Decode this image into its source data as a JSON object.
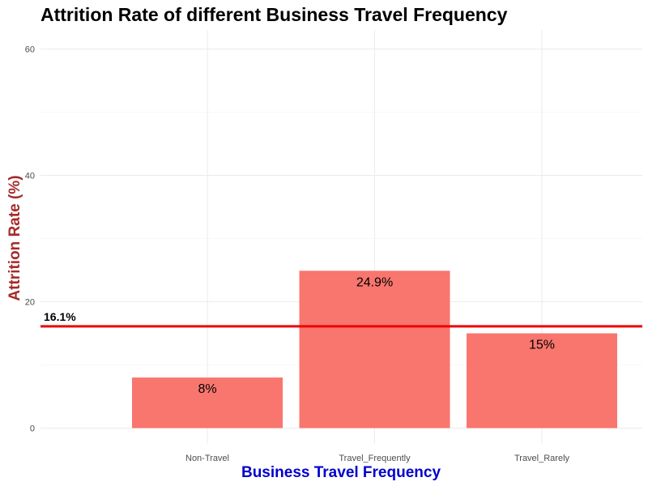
{
  "chart_data": {
    "type": "bar",
    "title": "Attrition Rate of different Business Travel Frequency",
    "xlabel": "Business Travel Frequency",
    "ylabel": "Attrition Rate (%)",
    "categories": [
      "Non-Travel",
      "Travel_Frequently",
      "Travel_Rarely"
    ],
    "values": [
      8.0,
      24.9,
      15.0
    ],
    "value_labels": [
      "8%",
      "24.9%",
      "15%"
    ],
    "ylim": [
      0,
      60
    ],
    "y_ticks": [
      0,
      20,
      40,
      60
    ],
    "grid": true,
    "reference_line": {
      "value": 16.1,
      "label": "16.1%",
      "color": "#ee0000"
    },
    "colors": {
      "bar": "#f8766d",
      "xlabel": "#0000cc",
      "ylabel": "#a52a2a",
      "grid": "#ebebeb"
    }
  }
}
